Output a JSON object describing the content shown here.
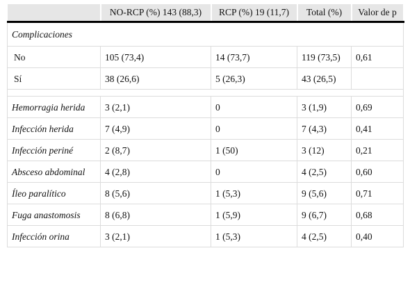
{
  "table": {
    "headers": [
      "",
      "NO-RCP (%) 143 (88,3)",
      "RCP (%) 19 (11,7)",
      "Total (%)",
      "Valor de p"
    ],
    "section_title": "Complicaciones",
    "summary_rows": [
      {
        "label": "No",
        "norcp": "105 (73,4)",
        "rcp": "14 (73,7)",
        "total": "119 (73,5)",
        "p": "0,61"
      },
      {
        "label": "Sí",
        "norcp": "38 (26,6)",
        "rcp": "5 (26,3)",
        "total": "43 (26,5)",
        "p": ""
      }
    ],
    "detail_rows": [
      {
        "label": "Hemorragia herida",
        "norcp": "3 (2,1)",
        "rcp": "0",
        "total": "3 (1,9)",
        "p": "0,69"
      },
      {
        "label": "Infección herida",
        "norcp": "7 (4,9)",
        "rcp": "0",
        "total": "7 (4,3)",
        "p": "0,41"
      },
      {
        "label": "Infección periné",
        "norcp": "2 (8,7)",
        "rcp": "1 (50)",
        "total": "3 (12)",
        "p": "0,21"
      },
      {
        "label": "Absceso abdominal",
        "norcp": "4 (2,8)",
        "rcp": "0",
        "total": "4 (2,5)",
        "p": "0,60"
      },
      {
        "label": "Íleo paralítico",
        "norcp": "8 (5,6)",
        "rcp": "1 (5,3)",
        "total": "9 (5,6)",
        "p": "0,71"
      },
      {
        "label": "Fuga anastomosis",
        "norcp": "8 (6,8)",
        "rcp": "1 (5,9)",
        "total": "9 (6,7)",
        "p": "0,68"
      },
      {
        "label": "Infección orina",
        "norcp": "3 (2,1)",
        "rcp": "1 (5,3)",
        "total": "4 (2,5)",
        "p": "0,40"
      }
    ]
  }
}
